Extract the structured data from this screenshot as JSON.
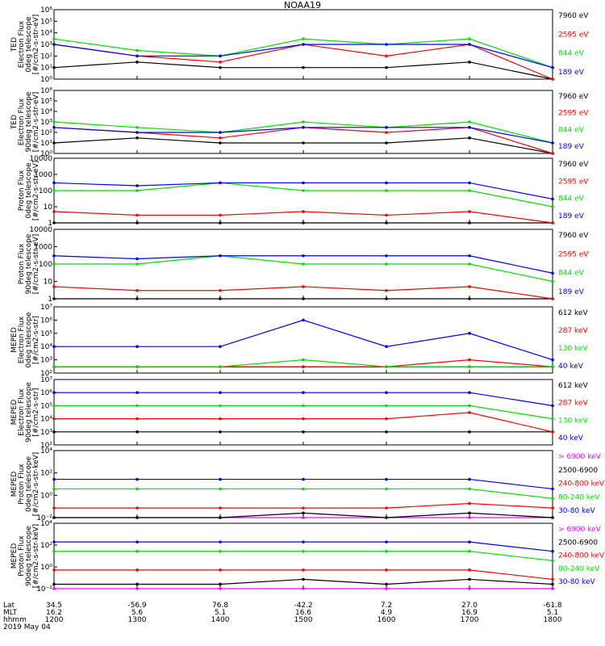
{
  "title": "NOAA19",
  "colors": {
    "blue": "#0000ff",
    "green": "#00e000",
    "red": "#ff0000",
    "black": "#000000",
    "magenta": "#ff00ff"
  },
  "footer": {
    "row_labels": [
      "Lat",
      "MLT",
      "hhmm",
      "2019 May 04"
    ],
    "lat": [
      "34.5",
      "-56.9",
      "76.8",
      "-42.2",
      "7.2",
      "27.0",
      "-61.8"
    ],
    "mlt": [
      "16.2",
      "5.6",
      "5.1",
      "16.6",
      "4.9",
      "16.9",
      "5.1"
    ],
    "hhmm": [
      "1200",
      "1300",
      "1400",
      "1500",
      "1600",
      "1700",
      "1800"
    ]
  },
  "chart_data": [
    {
      "type": "line",
      "ylabel": [
        "TED",
        "Electron Flux",
        "0deg telescope",
        "[#/cm2-s-str-eV]"
      ],
      "ylim": [
        1,
        1000000
      ],
      "yscale": "log",
      "yticks": [
        "10⁰",
        "10¹",
        "10²",
        "10³",
        "10⁴",
        "10⁵",
        "10⁶"
      ],
      "legend": [
        {
          "label": "7960 eV",
          "color": "black"
        },
        {
          "label": "2595 eV",
          "color": "red"
        },
        {
          "label": "844 eV",
          "color": "green"
        },
        {
          "label": "189 eV",
          "color": "blue"
        }
      ],
      "x": [
        "1200",
        "1300",
        "1400",
        "1500",
        "1600",
        "1700",
        "1800"
      ],
      "series": [
        {
          "name": "7960 eV",
          "values": [
            10,
            30,
            10,
            10,
            10,
            30,
            1
          ]
        },
        {
          "name": "2595 eV",
          "values": [
            1000,
            100,
            30,
            1000,
            100,
            1000,
            1
          ]
        },
        {
          "name": "844 eV",
          "values": [
            3000,
            300,
            100,
            3000,
            1000,
            3000,
            10
          ]
        },
        {
          "name": "189 eV",
          "values": [
            1000,
            100,
            100,
            1000,
            1000,
            1000,
            10
          ]
        }
      ]
    },
    {
      "type": "line",
      "ylabel": [
        "TED",
        "Electron Flux",
        "90deg telescope",
        "[#/cm2-s-str-eV]"
      ],
      "ylim": [
        1,
        1000000
      ],
      "yscale": "log",
      "yticks": [
        "10⁰",
        "10¹",
        "10²",
        "10³",
        "10⁴",
        "10⁵",
        "10⁶"
      ],
      "legend": [
        {
          "label": "7960 eV",
          "color": "black"
        },
        {
          "label": "2595 eV",
          "color": "red"
        },
        {
          "label": "844 eV",
          "color": "green"
        },
        {
          "label": "189 eV",
          "color": "blue"
        }
      ],
      "x": [
        "1200",
        "1300",
        "1400",
        "1500",
        "1600",
        "1700",
        "1800"
      ],
      "series": [
        {
          "name": "7960 eV",
          "values": [
            10,
            30,
            10,
            10,
            10,
            30,
            1
          ]
        },
        {
          "name": "2595 eV",
          "values": [
            300,
            100,
            30,
            300,
            100,
            300,
            1
          ]
        },
        {
          "name": "844 eV",
          "values": [
            1000,
            300,
            100,
            1000,
            300,
            1000,
            10
          ]
        },
        {
          "name": "189 eV",
          "values": [
            300,
            100,
            100,
            300,
            300,
            300,
            10
          ]
        }
      ]
    },
    {
      "type": "line",
      "ylabel": [
        "Proton Flux",
        "0deg telescope",
        "[#/cm2-s-str-eV]"
      ],
      "ylim": [
        1,
        10000
      ],
      "yscale": "log",
      "yticks": [
        "1",
        "10",
        "100",
        "1000",
        "10000"
      ],
      "legend": [
        {
          "label": "7960 eV",
          "color": "black"
        },
        {
          "label": "2595 eV",
          "color": "red"
        },
        {
          "label": "844 eV",
          "color": "green"
        },
        {
          "label": "189 eV",
          "color": "blue"
        }
      ],
      "x": [
        "1200",
        "1300",
        "1400",
        "1500",
        "1600",
        "1700",
        "1800"
      ],
      "series": [
        {
          "name": "7960 eV",
          "values": [
            1,
            1,
            1,
            1,
            1,
            1,
            1
          ]
        },
        {
          "name": "2595 eV",
          "values": [
            5,
            3,
            3,
            5,
            3,
            5,
            1
          ]
        },
        {
          "name": "844 eV",
          "values": [
            100,
            100,
            300,
            100,
            100,
            100,
            10
          ]
        },
        {
          "name": "189 eV",
          "values": [
            300,
            200,
            300,
            300,
            300,
            300,
            30
          ]
        }
      ]
    },
    {
      "type": "line",
      "ylabel": [
        "Proton Flux",
        "90deg telescope",
        "[#/cm2-s-str-eV]"
      ],
      "ylim": [
        1,
        10000
      ],
      "yscale": "log",
      "yticks": [
        "1",
        "10",
        "100",
        "1000",
        "10000"
      ],
      "legend": [
        {
          "label": "7960 eV",
          "color": "black"
        },
        {
          "label": "2595 eV",
          "color": "red"
        },
        {
          "label": "844 eV",
          "color": "green"
        },
        {
          "label": "189 eV",
          "color": "blue"
        }
      ],
      "x": [
        "1200",
        "1300",
        "1400",
        "1500",
        "1600",
        "1700",
        "1800"
      ],
      "series": [
        {
          "name": "7960 eV",
          "values": [
            1,
            1,
            1,
            1,
            1,
            1,
            1
          ]
        },
        {
          "name": "2595 eV",
          "values": [
            5,
            3,
            3,
            5,
            3,
            5,
            1
          ]
        },
        {
          "name": "844 eV",
          "values": [
            100,
            100,
            300,
            100,
            100,
            100,
            10
          ]
        },
        {
          "name": "189 eV",
          "values": [
            300,
            200,
            300,
            300,
            300,
            300,
            30
          ]
        }
      ]
    },
    {
      "type": "line",
      "ylabel": [
        "MEPED",
        "Electron Flux",
        "0deg telescope",
        "[#/cm2-s-str]"
      ],
      "ylim": [
        100,
        10000000
      ],
      "yscale": "log",
      "yticks": [
        "10²",
        "10³",
        "10⁴",
        "10⁵",
        "10⁶",
        "10⁷"
      ],
      "legend": [
        {
          "label": "612 keV",
          "color": "black"
        },
        {
          "label": "287 keV",
          "color": "red"
        },
        {
          "label": "130 keV",
          "color": "green"
        },
        {
          "label": "40 keV",
          "color": "blue"
        }
      ],
      "x": [
        "1200",
        "1300",
        "1400",
        "1500",
        "1600",
        "1700",
        "1800"
      ],
      "series": [
        {
          "name": "612 keV",
          "values": [
            300,
            300,
            300,
            300,
            300,
            300,
            300
          ]
        },
        {
          "name": "287 keV",
          "values": [
            300,
            300,
            300,
            300,
            300,
            1000,
            300
          ]
        },
        {
          "name": "130 keV",
          "values": [
            300,
            300,
            300,
            1000,
            300,
            300,
            300
          ]
        },
        {
          "name": "40 keV",
          "values": [
            10000,
            10000,
            10000,
            1000000,
            10000,
            100000,
            1000
          ]
        }
      ]
    },
    {
      "type": "line",
      "ylabel": [
        "MEPED",
        "Electron Flux",
        "90deg telescope",
        "[#/cm2-s-str]"
      ],
      "ylim": [
        100,
        10000000
      ],
      "yscale": "log",
      "yticks": [
        "10²",
        "10³",
        "10⁴",
        "10⁵",
        "10⁶",
        "10⁷"
      ],
      "legend": [
        {
          "label": "612 keV",
          "color": "black"
        },
        {
          "label": "287 keV",
          "color": "red"
        },
        {
          "label": "130 keV",
          "color": "green"
        },
        {
          "label": "40 keV",
          "color": "blue"
        }
      ],
      "x": [
        "1200",
        "1300",
        "1400",
        "1500",
        "1600",
        "1700",
        "1800"
      ],
      "series": [
        {
          "name": "612 keV",
          "values": [
            1000,
            1000,
            1000,
            1000,
            1000,
            1000,
            1000
          ]
        },
        {
          "name": "287 keV",
          "values": [
            10000,
            10000,
            10000,
            10000,
            10000,
            30000,
            1000
          ]
        },
        {
          "name": "130 keV",
          "values": [
            100000,
            100000,
            100000,
            100000,
            100000,
            100000,
            10000
          ]
        },
        {
          "name": "40 keV",
          "values": [
            1000000,
            1000000,
            1000000,
            1000000,
            1000000,
            1000000,
            100000
          ]
        }
      ]
    },
    {
      "type": "line",
      "ylabel": [
        "MEPED",
        "Proton Flux",
        "0deg telescope",
        "[#/cm2-s-str-keV]"
      ],
      "ylim": [
        0.01,
        100000
      ],
      "yscale": "log",
      "yticks": [
        "10⁻²",
        "10⁰",
        "10²",
        "10⁴"
      ],
      "legend": [
        {
          "label": "> 6900 keV",
          "color": "magenta"
        },
        {
          "label": "2500-6900",
          "color": "black"
        },
        {
          "label": "240-800 keV",
          "color": "red"
        },
        {
          "label": "80-240 keV",
          "color": "green"
        },
        {
          "label": "30-80 keV",
          "color": "blue"
        }
      ],
      "x": [
        "1200",
        "1300",
        "1400",
        "1500",
        "1600",
        "1700",
        "1800"
      ],
      "series": [
        {
          "name": "> 6900 keV",
          "values": [
            0.01,
            0.01,
            0.01,
            0.01,
            0.01,
            0.01,
            0.01
          ]
        },
        {
          "name": "2500-6900",
          "values": [
            0.01,
            0.01,
            0.01,
            0.03,
            0.01,
            0.03,
            0.01
          ]
        },
        {
          "name": "240-800 keV",
          "values": [
            0.1,
            0.1,
            0.1,
            0.1,
            0.1,
            0.3,
            0.1
          ]
        },
        {
          "name": "80-240 keV",
          "values": [
            10,
            10,
            10,
            10,
            10,
            10,
            1
          ]
        },
        {
          "name": "30-80 keV",
          "values": [
            100,
            100,
            100,
            100,
            100,
            100,
            10
          ]
        }
      ]
    },
    {
      "type": "line",
      "ylabel": [
        "MEPED",
        "Proton Flux",
        "90deg telescope",
        "[#/cm2-s-str-keV]"
      ],
      "ylim": [
        0.01,
        100000
      ],
      "yscale": "log",
      "yticks": [
        "10⁻²",
        "10⁰",
        "10²",
        "10⁴"
      ],
      "legend": [
        {
          "label": "> 6900 keV",
          "color": "magenta"
        },
        {
          "label": "2500-6900",
          "color": "black"
        },
        {
          "label": "240-800 keV",
          "color": "red"
        },
        {
          "label": "80-240 keV",
          "color": "green"
        },
        {
          "label": "30-80 keV",
          "color": "blue"
        }
      ],
      "x": [
        "1200",
        "1300",
        "1400",
        "1500",
        "1600",
        "1700",
        "1800"
      ],
      "series": [
        {
          "name": "> 6900 keV",
          "values": [
            0.01,
            0.01,
            0.01,
            0.01,
            0.01,
            0.01,
            0.01
          ]
        },
        {
          "name": "2500-6900",
          "values": [
            0.03,
            0.03,
            0.03,
            0.1,
            0.03,
            0.1,
            0.03
          ]
        },
        {
          "name": "240-800 keV",
          "values": [
            1,
            1,
            1,
            1,
            1,
            1,
            0.1
          ]
        },
        {
          "name": "80-240 keV",
          "values": [
            100,
            100,
            100,
            100,
            100,
            100,
            10
          ]
        },
        {
          "name": "30-80 keV",
          "values": [
            1000,
            1000,
            1000,
            1000,
            1000,
            1000,
            100
          ]
        }
      ]
    }
  ]
}
